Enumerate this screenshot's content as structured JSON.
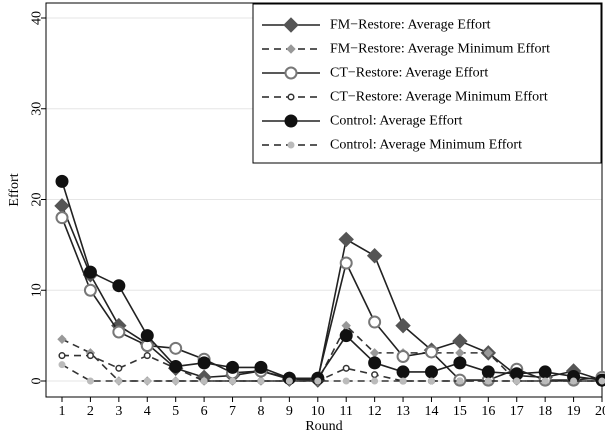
{
  "chart_data": {
    "type": "line",
    "xlabel": "Round",
    "ylabel": "Effort",
    "x": [
      1,
      2,
      3,
      4,
      5,
      6,
      7,
      8,
      9,
      10,
      11,
      12,
      13,
      14,
      15,
      16,
      17,
      18,
      19,
      20
    ],
    "x_ticks": [
      1,
      2,
      3,
      4,
      5,
      6,
      7,
      8,
      9,
      10,
      11,
      12,
      13,
      14,
      15,
      16,
      17,
      18,
      19,
      20
    ],
    "y_ticks": [
      0,
      10,
      20,
      30,
      40
    ],
    "xlim": [
      1,
      20
    ],
    "ylim": [
      0,
      40
    ],
    "grid": "horizontal",
    "legend_position": "top-right",
    "series": [
      {
        "name": "FM−Restore: Average Effort",
        "style": "solid",
        "marker": "diamond-filled",
        "color": "#555555",
        "values": [
          19.3,
          11.7,
          6.1,
          4.1,
          1.4,
          0.4,
          0.6,
          1.1,
          0.2,
          0.1,
          15.6,
          13.8,
          6.1,
          3.4,
          4.4,
          3.1,
          0.6,
          0.4,
          1.1,
          0.1
        ]
      },
      {
        "name": "FM−Restore: Average Minimum Effort",
        "style": "dashed",
        "marker": "diamond-small-light",
        "color": "#999999",
        "values": [
          4.6,
          3.1,
          0.0,
          0.0,
          0.0,
          0.0,
          0.0,
          0.0,
          0.0,
          0.0,
          6.1,
          3.1,
          3.1,
          3.1,
          3.1,
          3.1,
          0.0,
          0.0,
          0.0,
          0.0
        ]
      },
      {
        "name": "CT−Restore: Average Effort",
        "style": "solid",
        "marker": "circle-hollow",
        "color": "#777777",
        "values": [
          18.0,
          10.0,
          5.4,
          3.9,
          3.6,
          2.4,
          0.9,
          1.1,
          0.3,
          0.3,
          13.0,
          6.5,
          2.7,
          3.2,
          0.1,
          0.1,
          1.3,
          0.1,
          0.1,
          0.4
        ]
      },
      {
        "name": "CT−Restore: Average Minimum Effort",
        "style": "dashed",
        "marker": "circle-small-hollow",
        "color": "#333333",
        "values": [
          2.8,
          2.8,
          1.4,
          2.8,
          1.4,
          0.0,
          0.0,
          0.0,
          0.0,
          0.0,
          1.4,
          0.7,
          0.0,
          0.0,
          0.0,
          0.0,
          0.0,
          0.0,
          0.0,
          0.0
        ]
      },
      {
        "name": "Control: Average Effort",
        "style": "solid",
        "marker": "circle-filled",
        "color": "#111111",
        "values": [
          22.0,
          12.0,
          10.5,
          5.0,
          1.6,
          2.0,
          1.5,
          1.5,
          0.3,
          0.3,
          5.0,
          2.0,
          1.0,
          1.0,
          2.0,
          1.0,
          0.8,
          1.0,
          0.5,
          0.1
        ]
      },
      {
        "name": "Control: Average Minimum Effort",
        "style": "dashed",
        "marker": "circle-small-light",
        "color": "#bbbbbb",
        "values": [
          1.8,
          0.0,
          0.0,
          0.0,
          0.0,
          0.0,
          0.0,
          0.0,
          0.0,
          0.0,
          0.0,
          0.0,
          0.0,
          0.0,
          0.0,
          0.0,
          0.0,
          0.0,
          0.0,
          0.0
        ]
      }
    ]
  }
}
